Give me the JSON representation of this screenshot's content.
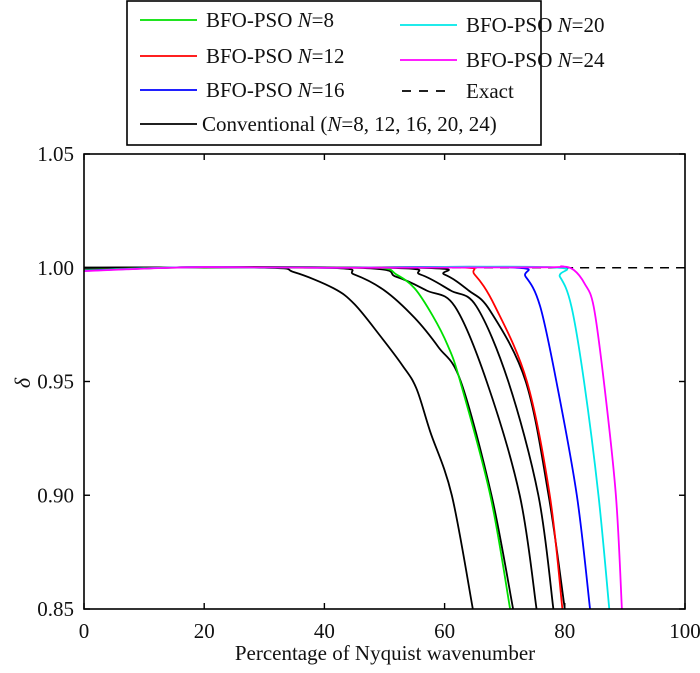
{
  "chart_data": {
    "type": "line",
    "title": "",
    "xlabel": "Percentage of Nyquist wavenumber",
    "ylabel": "δ",
    "xlim": [
      0,
      100
    ],
    "ylim": [
      0.85,
      1.05
    ],
    "xticks": [
      "0",
      "20",
      "40",
      "60",
      "80",
      "100"
    ],
    "yticks": [
      "0.85",
      "0.90",
      "0.95",
      "1.00",
      "1.05"
    ],
    "grid": false,
    "legend_placement": "top, above plot",
    "legend": [
      {
        "pre": "BFO-PSO ",
        "it": "N",
        "post": "=8",
        "color": "#00e000",
        "dash": false
      },
      {
        "pre": "BFO-PSO ",
        "it": "N",
        "post": "=12",
        "color": "#ff0000",
        "dash": false
      },
      {
        "pre": "BFO-PSO ",
        "it": "N",
        "post": "=16",
        "color": "#0000ff",
        "dash": false
      },
      {
        "pre": "Conventional (",
        "it": "N",
        "post": "=8, 12, 16, 20, 24)",
        "color": "#000000",
        "dash": false
      },
      {
        "pre": "BFO-PSO ",
        "it": "N",
        "post": "=20",
        "color": "#00e8e8",
        "dash": false
      },
      {
        "pre": "BFO-PSO ",
        "it": "N",
        "post": "=24",
        "color": "#ff00ff",
        "dash": false
      },
      {
        "pre": "Exact",
        "it": "",
        "post": "",
        "color": "#000000",
        "dash": true
      }
    ],
    "series": [
      {
        "name": "Exact",
        "color": "#000000",
        "dash": true,
        "points": [
          [
            0,
            1.0
          ],
          [
            100,
            1.0
          ]
        ]
      },
      {
        "name": "Conventional (N=8, 12, 16, 20, 24)",
        "color": "#000000",
        "points": [
          [
            0,
            1.0
          ],
          [
            30,
            1.0
          ],
          [
            35,
            0.998
          ],
          [
            41.5,
            0.991
          ],
          [
            45,
            0.984
          ],
          [
            49.3,
            0.97
          ],
          [
            53,
            0.957
          ],
          [
            55.3,
            0.947
          ],
          [
            57.6,
            0.928
          ],
          [
            61.2,
            0.9
          ],
          [
            64.7,
            0.85
          ]
        ]
      },
      {
        "name": "Conventional (N=8, 12, 16, 20, 24)",
        "color": "#000000",
        "points": [
          [
            0,
            1.0
          ],
          [
            40,
            1.0
          ],
          [
            45,
            0.997
          ],
          [
            50,
            0.99
          ],
          [
            55,
            0.978
          ],
          [
            59,
            0.965
          ],
          [
            62.7,
            0.95
          ],
          [
            67.8,
            0.9
          ],
          [
            71.4,
            0.85
          ]
        ]
      },
      {
        "name": "Conventional (N=8, 12, 16, 20, 24)",
        "color": "#000000",
        "points": [
          [
            0,
            1.0
          ],
          [
            45,
            1.0
          ],
          [
            52,
            0.996
          ],
          [
            57,
            0.99
          ],
          [
            61.7,
            0.983
          ],
          [
            67.0,
            0.95
          ],
          [
            72.5,
            0.9
          ],
          [
            75.3,
            0.85
          ]
        ]
      },
      {
        "name": "Conventional (N=8, 12, 16, 20, 24)",
        "color": "#000000",
        "points": [
          [
            0,
            1.0
          ],
          [
            50,
            1.0
          ],
          [
            56,
            0.997
          ],
          [
            61,
            0.99
          ],
          [
            65.3,
            0.983
          ],
          [
            70.6,
            0.95
          ],
          [
            75.6,
            0.9
          ],
          [
            78.1,
            0.85
          ]
        ]
      },
      {
        "name": "Conventional (N=8, 12, 16, 20, 24)",
        "color": "#000000",
        "points": [
          [
            0,
            1.0
          ],
          [
            55,
            1.0
          ],
          [
            60,
            0.997
          ],
          [
            64,
            0.99
          ],
          [
            67.6,
            0.981
          ],
          [
            73.5,
            0.95
          ],
          [
            77.3,
            0.9
          ],
          [
            80.0,
            0.85
          ]
        ]
      },
      {
        "name": "BFO-PSO N=8",
        "color": "#00e000",
        "points": [
          [
            0,
            0.999
          ],
          [
            10,
            0.9998
          ],
          [
            20,
            1.0002
          ],
          [
            35,
            1.0
          ],
          [
            49,
            1.0
          ],
          [
            52,
            0.997
          ],
          [
            55,
            0.991
          ],
          [
            58,
            0.979
          ],
          [
            60.5,
            0.966
          ],
          [
            62.6,
            0.95
          ],
          [
            67.6,
            0.9
          ],
          [
            70.9,
            0.85
          ]
        ]
      },
      {
        "name": "BFO-PSO N=12",
        "color": "#ff0000",
        "points": [
          [
            0,
            0.9988
          ],
          [
            10,
            0.9997
          ],
          [
            20,
            1.0003
          ],
          [
            40,
            1.0
          ],
          [
            62.6,
            1.0002
          ],
          [
            65,
            0.997
          ],
          [
            68.4,
            0.983
          ],
          [
            73.7,
            0.95
          ],
          [
            77.5,
            0.9
          ],
          [
            79.6,
            0.85
          ]
        ]
      },
      {
        "name": "BFO-PSO N=16",
        "color": "#0000ff",
        "points": [
          [
            0,
            0.9987
          ],
          [
            10,
            0.9997
          ],
          [
            20,
            1.0003
          ],
          [
            40,
            1.0
          ],
          [
            70.9,
            1.0002
          ],
          [
            73.5,
            0.996
          ],
          [
            75.9,
            0.983
          ],
          [
            78.6,
            0.95
          ],
          [
            82.0,
            0.9
          ],
          [
            84.2,
            0.85
          ]
        ]
      },
      {
        "name": "BFO-PSO N=20",
        "color": "#00e8e8",
        "points": [
          [
            0,
            0.9986
          ],
          [
            10,
            0.9997
          ],
          [
            20,
            1.0003
          ],
          [
            40,
            1.0
          ],
          [
            77.0,
            1.0003
          ],
          [
            79.2,
            0.996
          ],
          [
            81.1,
            0.983
          ],
          [
            83.2,
            0.95
          ],
          [
            85.6,
            0.9
          ],
          [
            87.4,
            0.85
          ]
        ]
      },
      {
        "name": "BFO-PSO N=24",
        "color": "#ff00ff",
        "points": [
          [
            0,
            0.9985
          ],
          [
            10,
            0.9996
          ],
          [
            20,
            1.0003
          ],
          [
            40,
            1.0
          ],
          [
            76,
            1.0002
          ],
          [
            79.5,
            1.0006
          ],
          [
            81.5,
            0.999
          ],
          [
            83.3,
            0.993
          ],
          [
            84.8,
            0.983
          ],
          [
            86.5,
            0.95
          ],
          [
            88.5,
            0.9
          ],
          [
            89.5,
            0.85
          ]
        ]
      }
    ]
  }
}
